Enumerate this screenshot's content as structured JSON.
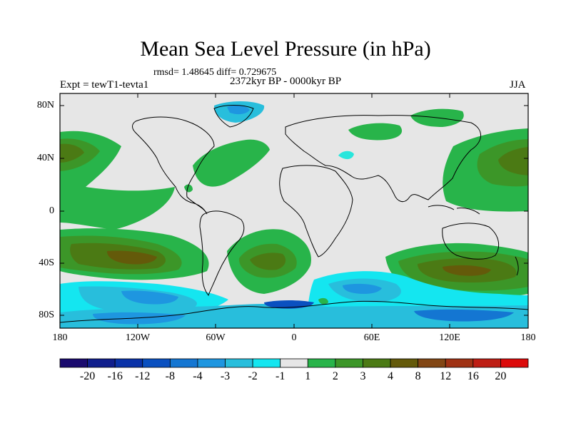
{
  "title": "Mean Sea Level Pressure (in hPa)",
  "stats": "rmsd= 1.48645 diff= 0.729675",
  "period": "2372kyr BP - 0000kyr BP",
  "expt": "Expt = tewT1-tevta1",
  "season": "JJA",
  "y_ticks": [
    "80N",
    "40N",
    "0",
    "40S",
    "80S"
  ],
  "x_ticks": [
    "180",
    "120W",
    "60W",
    "0",
    "60E",
    "120E",
    "180"
  ],
  "colorbar": {
    "labels": [
      "-20",
      "-16",
      "-12",
      "-8",
      "-4",
      "-3",
      "-2",
      "-1",
      "1",
      "2",
      "3",
      "4",
      "8",
      "12",
      "16",
      "20"
    ],
    "colors": [
      "#1a0a6e",
      "#101e8c",
      "#0a32a8",
      "#0a50c0",
      "#1476d2",
      "#1e96e0",
      "#28bedc",
      "#14e6f0",
      "#e6e6e6",
      "#28b44a",
      "#3c9628",
      "#4b7a14",
      "#645a0a",
      "#824614",
      "#a03214",
      "#be1e14",
      "#dc0a0a"
    ]
  },
  "colors": {
    "land_neutral": "#e6e6e6",
    "coast": "#000000"
  }
}
